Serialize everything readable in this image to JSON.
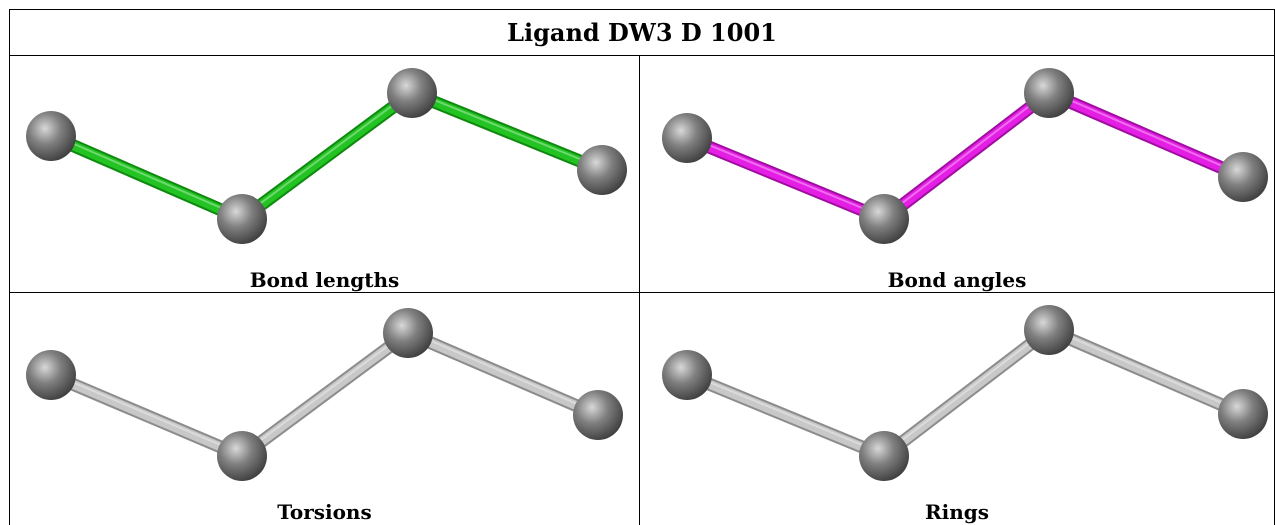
{
  "title": "Ligand DW3 D 1001",
  "panels": [
    {
      "caption": "Bond lengths",
      "bond_color": "#22c322",
      "bond_shade": "#0f8a0f"
    },
    {
      "caption": "Bond angles",
      "bond_color": "#e51ee5",
      "bond_shade": "#a00da0"
    },
    {
      "caption": "Torsions",
      "bond_color": "#c8c8c8",
      "bond_shade": "#8c8c8c"
    },
    {
      "caption": "Rings",
      "bond_color": "#c8c8c8",
      "bond_shade": "#8c8c8c"
    }
  ],
  "atom_color": "#808080"
}
